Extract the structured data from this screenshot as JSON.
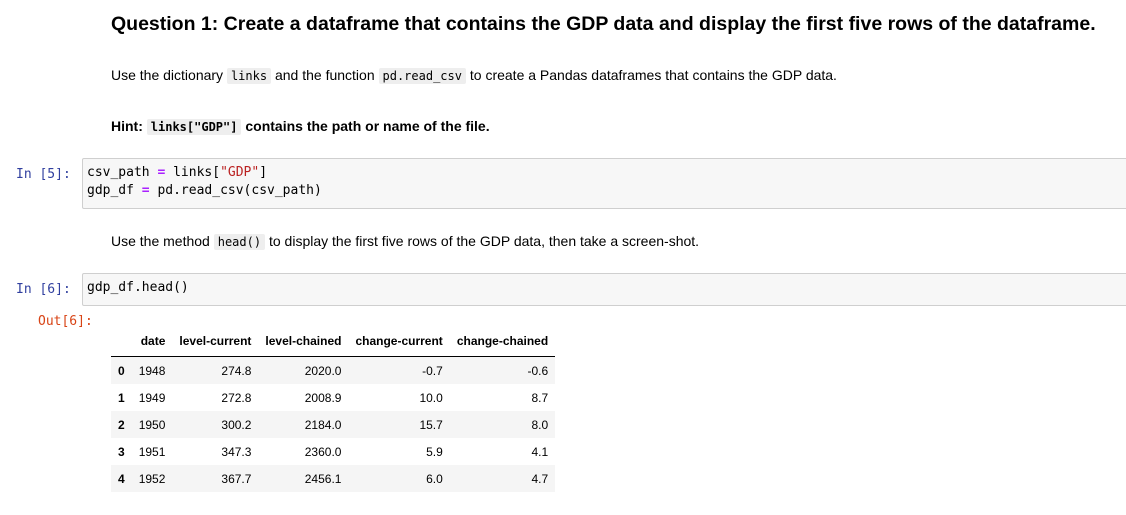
{
  "markdown": {
    "heading": "Question 1: Create a dataframe that contains the GDP data and display the first five rows of the dataframe.",
    "para1": {
      "t1": "Use the dictionary ",
      "c1": "links",
      "t2": " and the function ",
      "c2": "pd.read_csv",
      "t3": " to create a Pandas dataframes that contains the GDP data."
    },
    "hint": {
      "t1": "Hint: ",
      "c1": "links[\"GDP\"]",
      "t2": " contains the path or name of the file."
    },
    "para2": {
      "t1": "Use the method ",
      "c1": "head()",
      "t2": " to display the first five rows of the GDP data, then take a screen-shot."
    }
  },
  "cells": [
    {
      "prompt": "In [5]:",
      "lines": [
        {
          "a": "csv_path ",
          "op": "=",
          "b": " links[",
          "s": "\"GDP\"",
          "c": "]"
        },
        {
          "a": "gdp_df ",
          "op": "=",
          "b": " pd.read_csv(csv_path)",
          "s": "",
          "c": ""
        }
      ]
    },
    {
      "prompt": "In [6]:",
      "lines": [
        {
          "a": "gdp_df.head()",
          "op": "",
          "b": "",
          "s": "",
          "c": ""
        }
      ],
      "output_prompt": "Out[6]:"
    }
  ],
  "dataframe": {
    "columns": [
      "",
      "date",
      "level-current",
      "level-chained",
      "change-current",
      "change-chained"
    ],
    "rows": [
      [
        "0",
        "1948",
        "274.8",
        "2020.0",
        "-0.7",
        "-0.6"
      ],
      [
        "1",
        "1949",
        "272.8",
        "2008.9",
        "10.0",
        "8.7"
      ],
      [
        "2",
        "1950",
        "300.2",
        "2184.0",
        "15.7",
        "8.0"
      ],
      [
        "3",
        "1951",
        "347.3",
        "2360.0",
        "5.9",
        "4.1"
      ],
      [
        "4",
        "1952",
        "367.7",
        "2456.1",
        "6.0",
        "4.7"
      ]
    ]
  },
  "colors": {
    "prompt_in": "#303f9f",
    "prompt_out": "#d84315",
    "code_operator": "#aa22ff",
    "code_string": "#ba2121",
    "cell_background": "#f7f7f7"
  }
}
